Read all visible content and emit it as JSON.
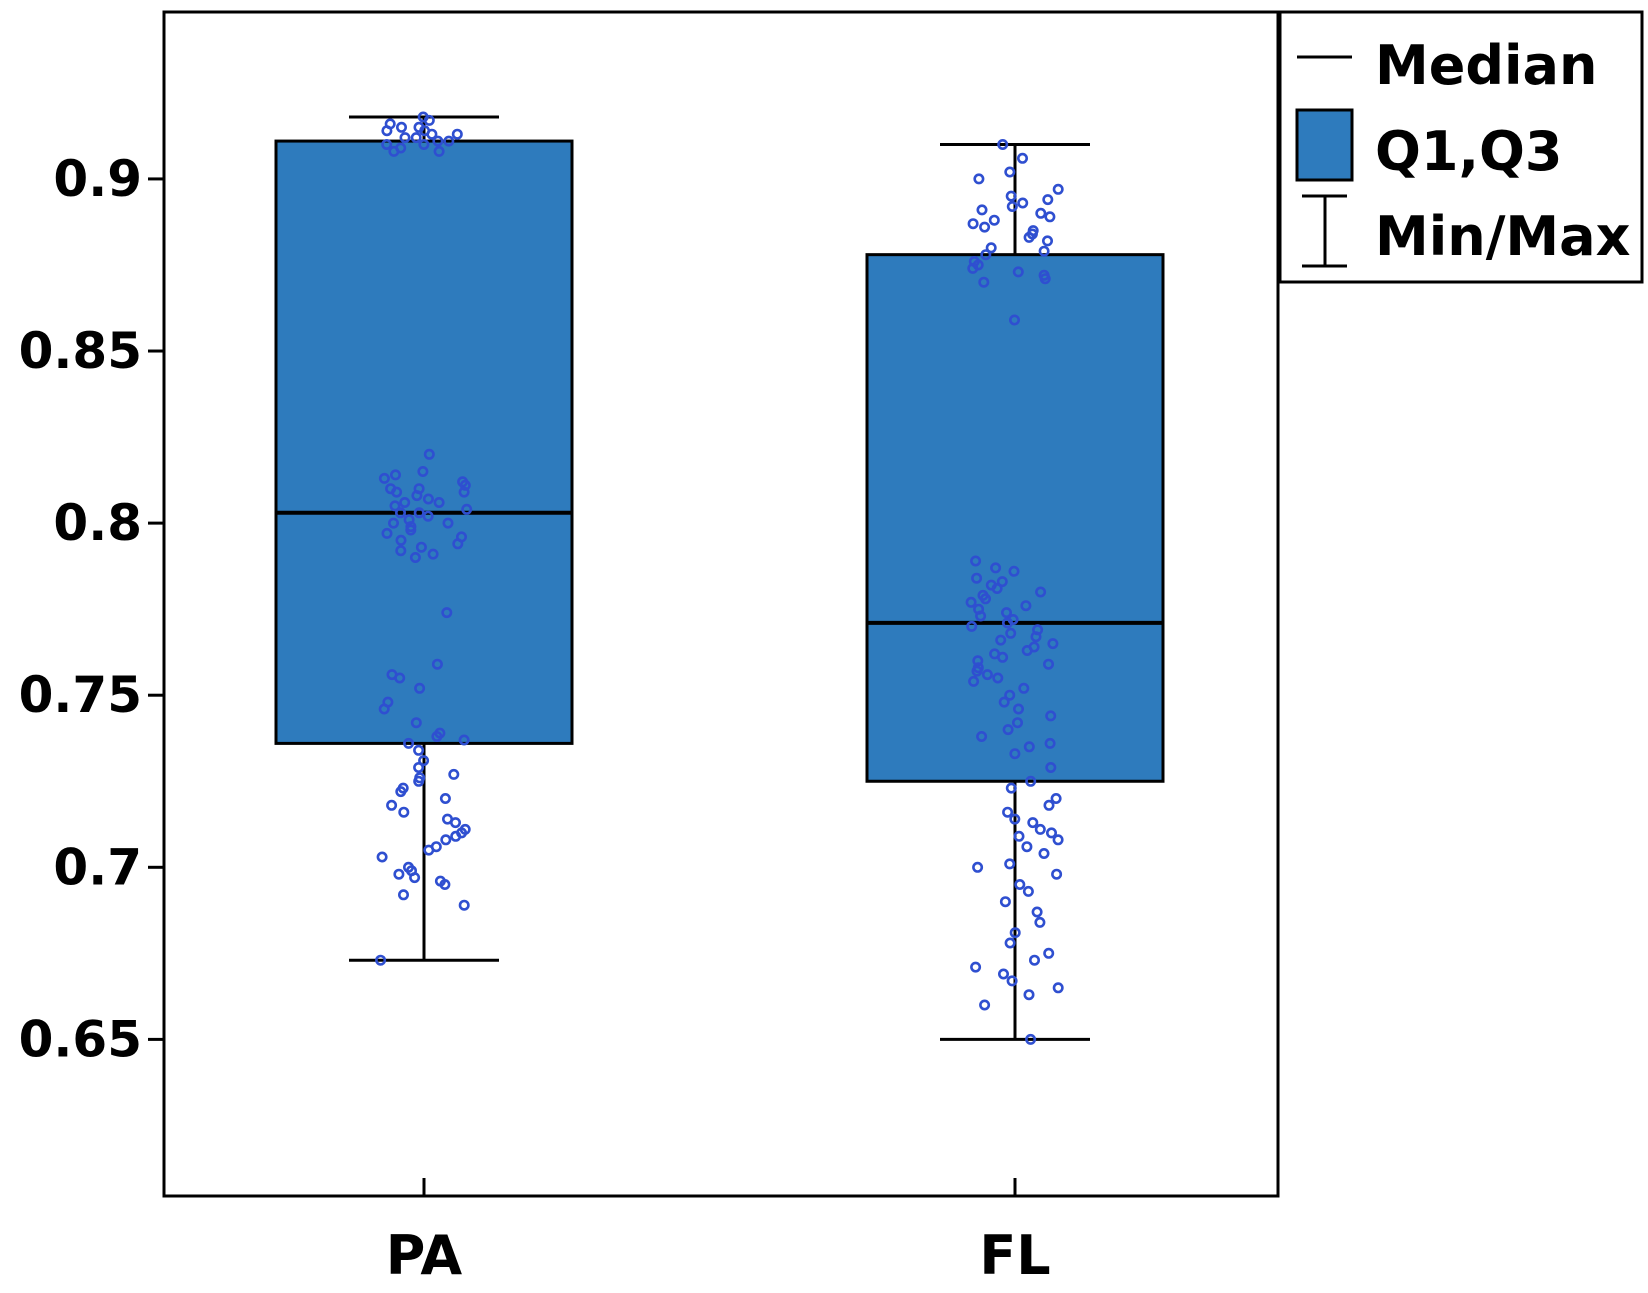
{
  "chart_data": {
    "type": "boxplot",
    "title": "",
    "xlabel": "",
    "ylabel": "",
    "ylim": [
      0.6045,
      0.9485
    ],
    "yticks": [
      0.65,
      0.7,
      0.75,
      0.8,
      0.85,
      0.9
    ],
    "ytick_labels": [
      "0.65",
      "0.7",
      "0.75",
      "0.8",
      "0.85",
      "0.9"
    ],
    "categories": [
      "PA",
      "FL"
    ],
    "colors": {
      "box": "#2e7bbd",
      "point": "#2f4fd0",
      "line": "#000000"
    },
    "legend": {
      "position": "top-right (outside plot)",
      "items": [
        {
          "type": "median",
          "label": "Median"
        },
        {
          "type": "box",
          "label": "Q1,Q3"
        },
        {
          "type": "whisker",
          "label": "Min/Max"
        }
      ]
    },
    "boxes": [
      {
        "category": "PA",
        "min": 0.673,
        "q1": 0.736,
        "median": 0.803,
        "q3": 0.911,
        "max": 0.918
      },
      {
        "category": "FL",
        "min": 0.65,
        "q1": 0.725,
        "median": 0.771,
        "q3": 0.878,
        "max": 0.91
      }
    ],
    "points": {
      "PA": [
        0.918,
        0.917,
        0.916,
        0.915,
        0.915,
        0.914,
        0.914,
        0.913,
        0.913,
        0.912,
        0.912,
        0.911,
        0.911,
        0.91,
        0.91,
        0.909,
        0.908,
        0.908,
        0.82,
        0.815,
        0.814,
        0.813,
        0.812,
        0.811,
        0.81,
        0.81,
        0.809,
        0.809,
        0.808,
        0.807,
        0.806,
        0.806,
        0.805,
        0.804,
        0.803,
        0.803,
        0.802,
        0.801,
        0.8,
        0.8,
        0.799,
        0.798,
        0.797,
        0.796,
        0.795,
        0.794,
        0.793,
        0.792,
        0.791,
        0.79,
        0.774,
        0.759,
        0.756,
        0.755,
        0.752,
        0.748,
        0.746,
        0.742,
        0.739,
        0.738,
        0.737,
        0.736,
        0.734,
        0.731,
        0.729,
        0.727,
        0.726,
        0.725,
        0.723,
        0.722,
        0.72,
        0.718,
        0.716,
        0.714,
        0.713,
        0.711,
        0.71,
        0.709,
        0.708,
        0.706,
        0.705,
        0.703,
        0.7,
        0.699,
        0.698,
        0.697,
        0.696,
        0.695,
        0.692,
        0.689,
        0.673
      ],
      "FL": [
        0.91,
        0.906,
        0.902,
        0.9,
        0.897,
        0.895,
        0.894,
        0.893,
        0.892,
        0.891,
        0.89,
        0.889,
        0.888,
        0.887,
        0.886,
        0.885,
        0.884,
        0.883,
        0.882,
        0.88,
        0.879,
        0.878,
        0.876,
        0.875,
        0.874,
        0.873,
        0.872,
        0.871,
        0.87,
        0.859,
        0.789,
        0.787,
        0.786,
        0.784,
        0.783,
        0.782,
        0.781,
        0.78,
        0.779,
        0.778,
        0.777,
        0.776,
        0.775,
        0.774,
        0.773,
        0.772,
        0.771,
        0.77,
        0.769,
        0.768,
        0.767,
        0.766,
        0.765,
        0.764,
        0.763,
        0.762,
        0.761,
        0.76,
        0.759,
        0.758,
        0.757,
        0.756,
        0.755,
        0.754,
        0.752,
        0.75,
        0.748,
        0.746,
        0.744,
        0.742,
        0.74,
        0.738,
        0.736,
        0.735,
        0.733,
        0.729,
        0.725,
        0.723,
        0.72,
        0.718,
        0.716,
        0.714,
        0.713,
        0.711,
        0.71,
        0.709,
        0.708,
        0.706,
        0.704,
        0.701,
        0.7,
        0.698,
        0.695,
        0.693,
        0.69,
        0.687,
        0.684,
        0.681,
        0.678,
        0.675,
        0.673,
        0.671,
        0.669,
        0.667,
        0.665,
        0.663,
        0.66,
        0.65
      ]
    }
  }
}
